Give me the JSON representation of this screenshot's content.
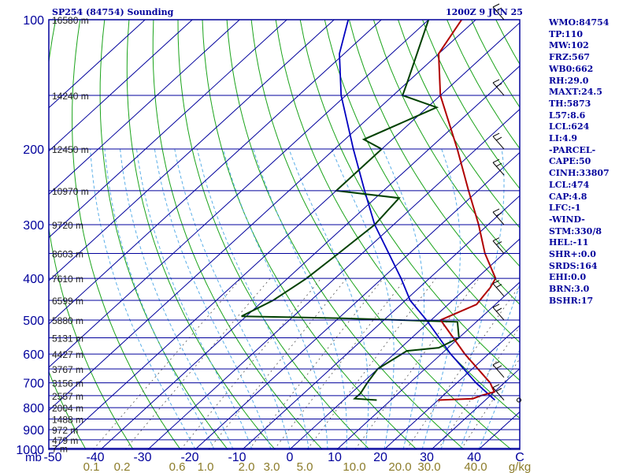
{
  "chart_data": {
    "type": "line",
    "subtype": "skew-T log-P sounding",
    "title_left": "SP254 (84754) Sounding",
    "title_right": "1200Z  9 JUN 25",
    "colors": {
      "frame": "#00009c",
      "axis_text": "#00009c",
      "isotherm": "#00009c",
      "mixing_ratio_text": "#8c7c2a",
      "temperature": "#b00000",
      "dewpoint": "#004000",
      "parcel": "#0000c0",
      "dry_adiabat": "#1aa31a",
      "moist_adiabat": "#5aaee8"
    },
    "pressure_levels": [
      1000,
      900,
      800,
      700,
      600,
      500,
      400,
      300,
      200,
      100
    ],
    "pressure_axis_range": [
      1000,
      100
    ],
    "temperature_ticks": [
      "-50",
      "-40",
      "-30",
      "-20",
      "-10",
      "0",
      "10",
      "20",
      "30",
      "40",
      "C"
    ],
    "mixing_ratio_labels": [
      "0.1",
      "0.2",
      "0.6",
      "1.0",
      "2.0",
      "3.0",
      "5.0",
      "10.0",
      "20.0",
      "30.0",
      "40.0",
      "g/kg"
    ],
    "height_labels": [
      {
        "p": 994,
        "label": "7 m"
      },
      {
        "p": 950,
        "label": "479 m"
      },
      {
        "p": 900,
        "label": "972 m"
      },
      {
        "p": 850,
        "label": "1488 m"
      },
      {
        "p": 800,
        "label": "2004 m"
      },
      {
        "p": 750,
        "label": "2557 m"
      },
      {
        "p": 700,
        "label": "3156 m"
      },
      {
        "p": 650,
        "label": "3767 m"
      },
      {
        "p": 600,
        "label": "4427 m"
      },
      {
        "p": 550,
        "label": "5131 m"
      },
      {
        "p": 500,
        "label": "5880 m"
      },
      {
        "p": 450,
        "label": "6599 m"
      },
      {
        "p": 400,
        "label": "7610 m"
      },
      {
        "p": 350,
        "label": "8603 m"
      },
      {
        "p": 300,
        "label": "9720 m"
      },
      {
        "p": 250,
        "label": "10970 m"
      },
      {
        "p": 200,
        "label": "12450 m"
      },
      {
        "p": 150,
        "label": "14240 m"
      },
      {
        "p": 100,
        "label": "16580 m"
      }
    ],
    "temperature_profile": [
      {
        "p": 768,
        "t": 20
      },
      {
        "p": 762,
        "t": 27
      },
      {
        "p": 750,
        "t": 28
      },
      {
        "p": 735,
        "t": 30
      },
      {
        "p": 700,
        "t": 27
      },
      {
        "p": 600,
        "t": 15
      },
      {
        "p": 500,
        "t": 2
      },
      {
        "p": 460,
        "t": 6
      },
      {
        "p": 420,
        "t": 5
      },
      {
        "p": 400,
        "t": 4
      },
      {
        "p": 350,
        "t": -4
      },
      {
        "p": 300,
        "t": -12
      },
      {
        "p": 250,
        "t": -22
      },
      {
        "p": 200,
        "t": -34
      },
      {
        "p": 150,
        "t": -50
      },
      {
        "p": 120,
        "t": -60
      },
      {
        "p": 100,
        "t": -63
      },
      {
        "p": 92,
        "t": -62
      },
      {
        "p": 84,
        "t": -57
      }
    ],
    "dewpoint_profile": [
      {
        "p": 768,
        "t": 7
      },
      {
        "p": 762,
        "t": 2
      },
      {
        "p": 740,
        "t": 2
      },
      {
        "p": 700,
        "t": 1
      },
      {
        "p": 650,
        "t": 0
      },
      {
        "p": 590,
        "t": 2
      },
      {
        "p": 580,
        "t": 8
      },
      {
        "p": 550,
        "t": 10
      },
      {
        "p": 505,
        "t": 6
      },
      {
        "p": 495,
        "t": -20
      },
      {
        "p": 490,
        "t": -41
      },
      {
        "p": 450,
        "t": -38
      },
      {
        "p": 400,
        "t": -36
      },
      {
        "p": 350,
        "t": -35
      },
      {
        "p": 300,
        "t": -34
      },
      {
        "p": 260,
        "t": -35
      },
      {
        "p": 250,
        "t": -50
      },
      {
        "p": 200,
        "t": -50
      },
      {
        "p": 190,
        "t": -56
      },
      {
        "p": 160,
        "t": -48
      },
      {
        "p": 150,
        "t": -58
      },
      {
        "p": 140,
        "t": -60
      },
      {
        "p": 100,
        "t": -70
      },
      {
        "p": 84,
        "t": -76
      }
    ],
    "parcel_profile": [
      {
        "p": 768,
        "t": 32
      },
      {
        "p": 700,
        "t": 24
      },
      {
        "p": 600,
        "t": 12
      },
      {
        "p": 500,
        "t": -1
      },
      {
        "p": 450,
        "t": -9
      },
      {
        "p": 400,
        "t": -16
      },
      {
        "p": 300,
        "t": -34
      },
      {
        "p": 250,
        "t": -44
      },
      {
        "p": 200,
        "t": -56
      },
      {
        "p": 150,
        "t": -71
      },
      {
        "p": 120,
        "t": -81
      },
      {
        "p": 100,
        "t": -87
      }
    ],
    "wind_barb_levels": [
      768,
      680,
      500,
      440,
      350,
      300,
      230,
      200,
      150,
      100
    ]
  },
  "sidebar": {
    "lines": [
      "WMO:84754",
      "TP:110",
      "MW:102",
      "FRZ:567",
      "WB0:662",
      "RH:29.0",
      "MAXT:24.5",
      "TH:5873",
      "L57:8.6",
      "LCL:624",
      "LI:4.9",
      "-PARCEL-",
      "CAPE:50",
      "CINH:33807",
      "LCL:474",
      "CAP:4.8",
      "LFC:-1",
      "-WIND-",
      "STM:330/8",
      "HEL:-11",
      "SHR+:0.0",
      "SRDS:164",
      "EHI:0.0",
      "BRN:3.0",
      "BSHR:17"
    ]
  }
}
